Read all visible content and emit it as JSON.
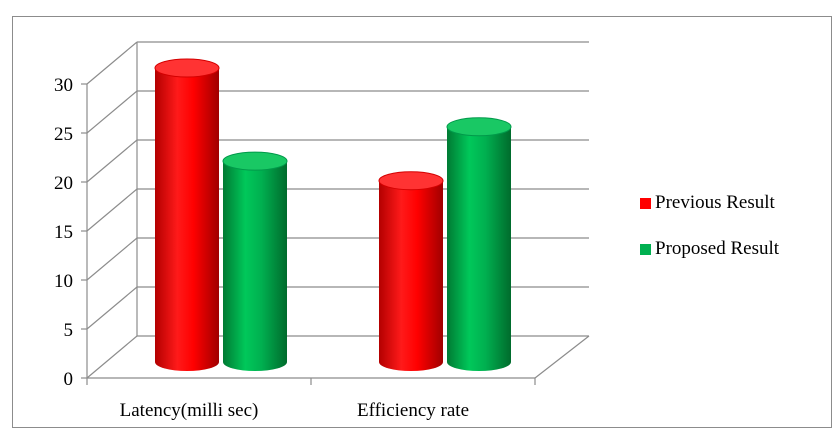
{
  "chart_data": {
    "type": "bar",
    "style": "3d-cylinder",
    "categories": [
      "Latency(milli sec)",
      "Efficiency rate"
    ],
    "series": [
      {
        "name": "Previous Result",
        "color": "#ff0000",
        "values": [
          30,
          18.5
        ]
      },
      {
        "name": "Proposed Result",
        "color": "#00b050",
        "values": [
          20.5,
          24
        ]
      }
    ],
    "yticks": [
      "0",
      "5",
      "10",
      "15",
      "20",
      "25",
      "30"
    ],
    "ylim": [
      0,
      30
    ],
    "grid": true,
    "legend_position": "right"
  }
}
